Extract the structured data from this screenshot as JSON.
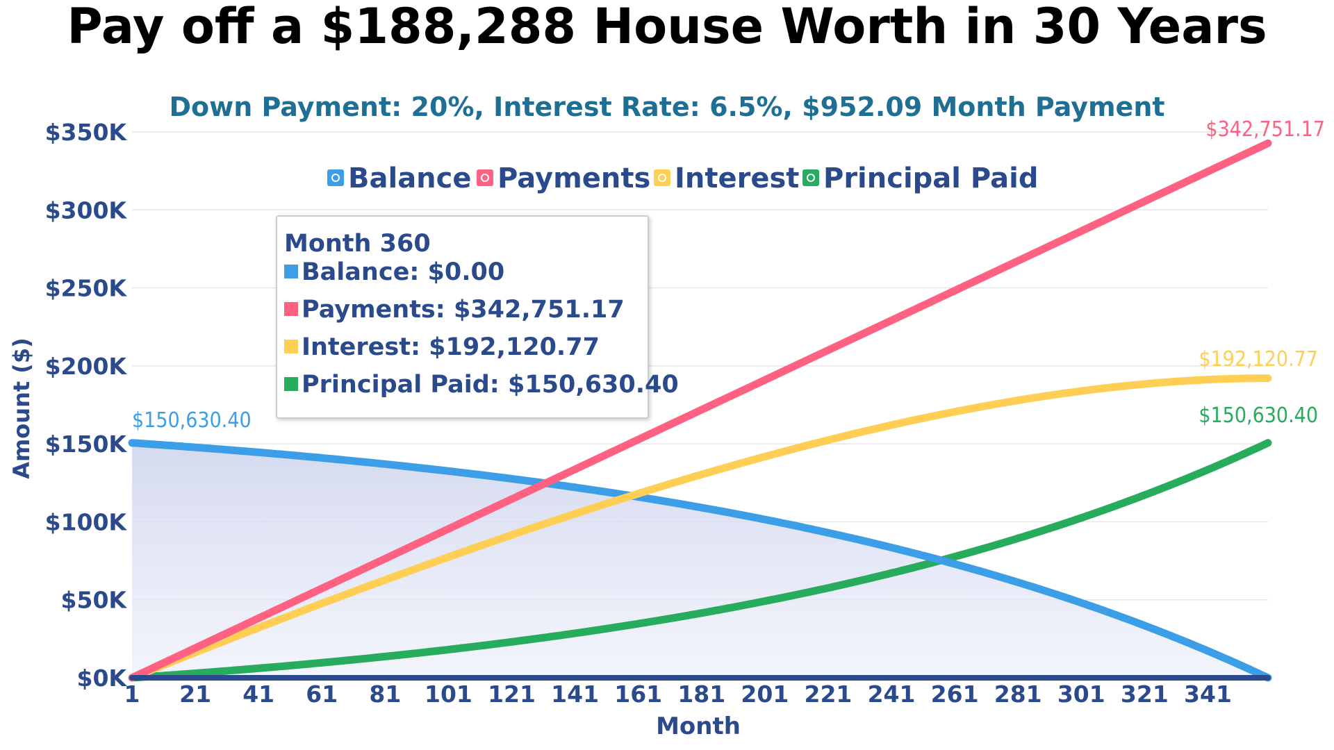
{
  "title": "Pay off a $188,288 House Worth in 30 Years",
  "subtitle": "Down Payment: 20%, Interest Rate: 6.5%, $952.09 Month Payment",
  "colors": {
    "balance": "#3b9ee6",
    "payments": "#ff6183",
    "interest": "#ffce55",
    "principal": "#27ab5c",
    "axis": "#2b4a8b",
    "grid": "#e6e6e6"
  },
  "chart_data": {
    "type": "line",
    "xlabel": "Month",
    "ylabel": "Amount ($)",
    "x_range": [
      1,
      360
    ],
    "ylim": [
      0,
      350000
    ],
    "x_ticks": [
      "1",
      "21",
      "41",
      "61",
      "81",
      "101",
      "121",
      "141",
      "161",
      "181",
      "201",
      "221",
      "241",
      "261",
      "281",
      "301",
      "321",
      "341"
    ],
    "y_ticks": [
      "$0K",
      "$50K",
      "$100K",
      "$150K",
      "$200K",
      "$250K",
      "$300K",
      "$350K"
    ],
    "legend": [
      "Balance",
      "Payments",
      "Interest",
      "Principal Paid"
    ],
    "legend_position": "top",
    "grid": true,
    "loan": {
      "principal": 150630.4,
      "annual_rate": 0.065,
      "months": 360,
      "payment": 952.09
    },
    "series": [
      {
        "name": "Balance",
        "key": "balance",
        "start_label": "$150,630.40",
        "final": 0
      },
      {
        "name": "Payments",
        "key": "payments",
        "end_label": "$342,751.17",
        "final": 342751.17
      },
      {
        "name": "Interest",
        "key": "interest",
        "end_label": "$192,120.77",
        "final": 192120.77
      },
      {
        "name": "Principal Paid",
        "key": "principal",
        "end_label": "$150,630.40",
        "final": 150630.4
      }
    ],
    "tooltip": {
      "title": "Month 360",
      "lines": [
        "Balance: $0.00",
        "Payments: $342,751.17",
        "Interest: $192,120.77",
        "Principal Paid: $150,630.40"
      ]
    }
  }
}
